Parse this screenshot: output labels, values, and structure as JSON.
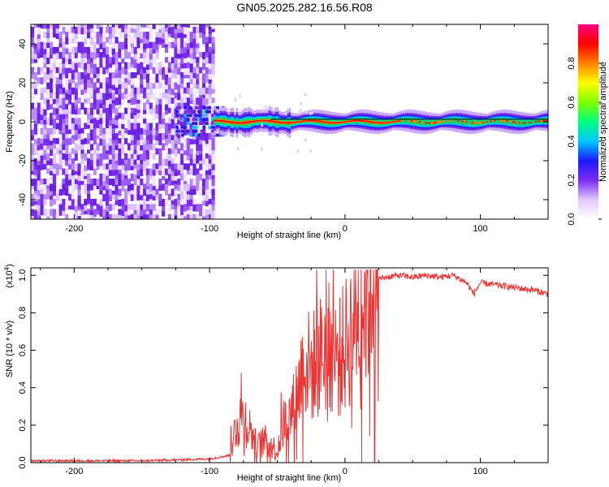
{
  "title": "GN05.2025.282.16.56.R08",
  "chart_data": [
    {
      "type": "heatmap",
      "xlabel": "Height of straight line (km)",
      "ylabel": "Frequency (Hz)",
      "xlim": [
        -232,
        150
      ],
      "ylim": [
        -50,
        50
      ],
      "xticks": [
        -200,
        -100,
        0,
        100
      ],
      "yticks": [
        -40,
        -20,
        0,
        20,
        40
      ],
      "colorbar": {
        "label": "Normalized spectral amplitude",
        "range": [
          0,
          1
        ],
        "ticks": [
          "0.0",
          "0.2",
          "0.4",
          "0.6",
          "0.8"
        ],
        "colors": [
          "#ffffff",
          "#e0c8ff",
          "#7a2cf0",
          "#1a1aff",
          "#00c8ff",
          "#00ff80",
          "#80ff00",
          "#ffff00",
          "#ff8000",
          "#ff0000",
          "#ff0080"
        ]
      },
      "regions": [
        {
          "x_range": [
            -232,
            -97
          ],
          "description_values": {
            "frequency_spread_hz": [
              -50,
              50
            ],
            "amplitude": [
              0.0,
              0.2
            ]
          }
        },
        {
          "x_range": [
            -97,
            150
          ],
          "description_values": {
            "center_frequency_hz": 0,
            "amplitude": [
              0.4,
              1.0
            ]
          }
        }
      ]
    },
    {
      "type": "line",
      "xlabel": "Height of straight line (km)",
      "ylabel": "SNR (10 * v/v)",
      "y_exponent": "(x10",
      "y_exponent_power": "4",
      "y_exponent_close": ")",
      "xlim": [
        -232,
        150
      ],
      "ylim": [
        0,
        1.04
      ],
      "xticks": [
        -200,
        -100,
        0,
        100
      ],
      "yticks": [
        "0.0",
        "0.2",
        "0.4",
        "0.6",
        "0.8",
        "1.0"
      ],
      "color": "#ee3333",
      "x": [
        -232,
        -150,
        -100,
        -85,
        -80,
        -75,
        -70,
        -65,
        -60,
        -55,
        -50,
        -45,
        -40,
        -35,
        -30,
        -25,
        -20,
        -15,
        -10,
        -5,
        0,
        5,
        10,
        15,
        20,
        25,
        30,
        40,
        50,
        60,
        70,
        80,
        85,
        90,
        95,
        100,
        110,
        120,
        130,
        140,
        150
      ],
      "y": [
        0.01,
        0.01,
        0.02,
        0.04,
        0.22,
        0.25,
        0.18,
        0.08,
        0.12,
        0.1,
        0.06,
        0.22,
        0.25,
        0.38,
        0.55,
        0.5,
        0.55,
        0.6,
        0.62,
        0.55,
        0.62,
        0.72,
        0.82,
        0.9,
        0.95,
        0.98,
        0.99,
        1.0,
        0.99,
        1.0,
        0.99,
        1.0,
        0.98,
        0.96,
        0.9,
        0.96,
        0.95,
        0.94,
        0.93,
        0.92,
        0.9
      ]
    }
  ]
}
